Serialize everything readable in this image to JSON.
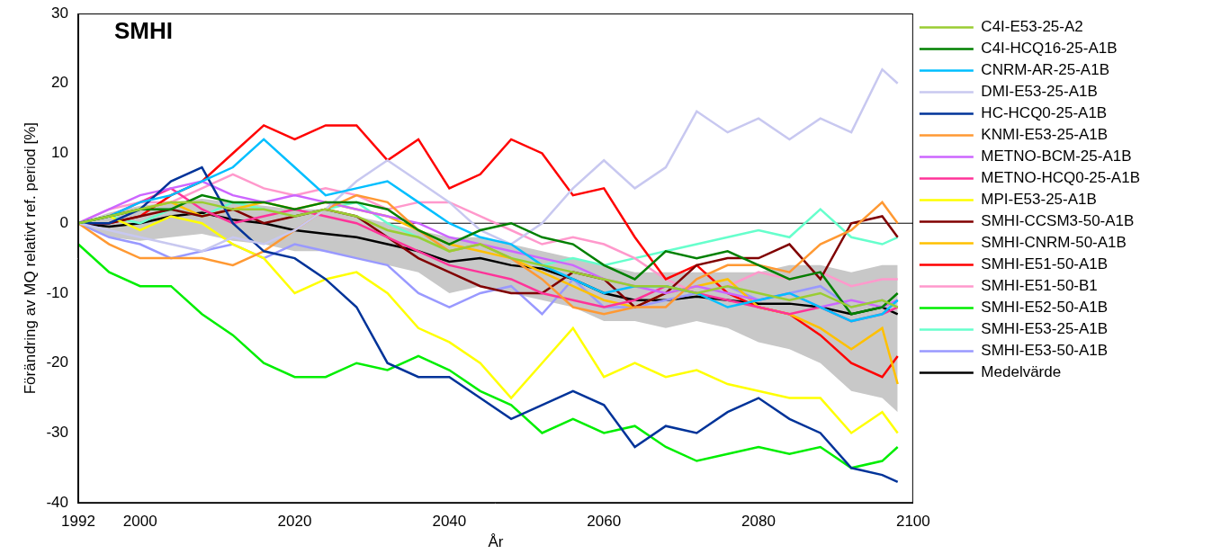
{
  "chart_data": {
    "type": "line",
    "annotation": "SMHI",
    "x_label": "År",
    "y_label": "Förändring av MQ relativt ref. period [%]",
    "x": [
      1992,
      1996,
      2000,
      2004,
      2008,
      2012,
      2016,
      2020,
      2024,
      2028,
      2032,
      2036,
      2040,
      2044,
      2048,
      2052,
      2056,
      2060,
      2064,
      2068,
      2072,
      2076,
      2080,
      2084,
      2088,
      2092,
      2096,
      2098
    ],
    "series": [
      {
        "name": "C4I-E53-25-A2",
        "color": "#9acd32",
        "values": [
          0,
          1,
          2,
          3,
          3,
          2,
          2,
          1,
          2,
          1,
          -1,
          -2,
          -4,
          -3,
          -5,
          -6,
          -7,
          -8,
          -9,
          -9,
          -10,
          -9,
          -10,
          -11,
          -10,
          -12,
          -11,
          -12
        ]
      },
      {
        "name": "C4I-HCQ16-25-A1B",
        "color": "#008000",
        "values": [
          0,
          1,
          2,
          2,
          4,
          3,
          3,
          2,
          3,
          3,
          2,
          -1,
          -3,
          -1,
          0,
          -2,
          -3,
          -6,
          -8,
          -4,
          -5,
          -4,
          -6,
          -8,
          -7,
          -13,
          -12,
          -10
        ]
      },
      {
        "name": "CNRM-AR-25-A1B",
        "color": "#00bfff",
        "values": [
          0,
          1,
          3,
          4,
          6,
          8,
          12,
          8,
          4,
          5,
          6,
          3,
          0,
          -2,
          -3,
          -6,
          -8,
          -10,
          -9,
          -9,
          -10,
          -12,
          -11,
          -10,
          -12,
          -14,
          -13,
          -11
        ]
      },
      {
        "name": "DMI-E53-25-A1B",
        "color": "#c8c8f0",
        "values": [
          0,
          -1,
          -2,
          -3,
          -4,
          -2,
          -3,
          -1,
          2,
          6,
          9,
          6,
          3,
          -1,
          -3,
          0,
          5,
          9,
          5,
          8,
          16,
          13,
          15,
          12,
          15,
          13,
          22,
          20
        ]
      },
      {
        "name": "HC-HCQ0-25-A1B",
        "color": "#003399",
        "values": [
          0,
          0,
          2,
          6,
          8,
          0,
          -4,
          -5,
          -8,
          -12,
          -20,
          -22,
          -22,
          -25,
          -28,
          -26,
          -24,
          -26,
          -32,
          -29,
          -30,
          -27,
          -25,
          -28,
          -30,
          -35,
          -36,
          -37
        ]
      },
      {
        "name": "KNMI-E53-25-A1B",
        "color": "#ff9933",
        "values": [
          0,
          -3,
          -5,
          -5,
          -5,
          -6,
          -4,
          -1,
          2,
          4,
          3,
          -1,
          -4,
          -3,
          -5,
          -8,
          -12,
          -13,
          -12,
          -12,
          -8,
          -6,
          -6,
          -7,
          -3,
          -1,
          3,
          0
        ]
      },
      {
        "name": "METNO-BCM-25-A1B",
        "color": "#cc66ff",
        "values": [
          0,
          2,
          4,
          5,
          6,
          4,
          3,
          4,
          3,
          2,
          1,
          0,
          -2,
          -3,
          -4,
          -5,
          -6,
          -8,
          -9,
          -10,
          -9,
          -10,
          -11,
          -10,
          -12,
          -11,
          -12,
          -11
        ]
      },
      {
        "name": "METNO-HCQ0-25-A1B",
        "color": "#ff3399",
        "values": [
          0,
          1,
          3,
          5,
          2,
          0,
          1,
          2,
          1,
          0,
          -2,
          -4,
          -6,
          -7,
          -8,
          -10,
          -11,
          -12,
          -11,
          -9,
          -10,
          -11,
          -12,
          -13,
          -12,
          -14,
          -13,
          -12
        ]
      },
      {
        "name": "MPI-E53-25-A1B",
        "color": "#ffff00",
        "values": [
          0,
          1,
          -1,
          1,
          0,
          -3,
          -5,
          -10,
          -8,
          -7,
          -10,
          -15,
          -17,
          -20,
          -25,
          -20,
          -15,
          -22,
          -20,
          -22,
          -21,
          -23,
          -24,
          -25,
          -25,
          -30,
          -27,
          -30
        ]
      },
      {
        "name": "SMHI-CCSM3-50-A1B",
        "color": "#800000",
        "values": [
          0,
          0,
          1,
          2,
          1,
          2,
          0,
          1,
          2,
          1,
          -2,
          -5,
          -7,
          -9,
          -10,
          -10,
          -7,
          -8,
          -12,
          -10,
          -6,
          -5,
          -5,
          -3,
          -8,
          0,
          1,
          -2
        ]
      },
      {
        "name": "SMHI-CNRM-50-A1B",
        "color": "#ffc000",
        "values": [
          0,
          1,
          2,
          3,
          1,
          2,
          3,
          2,
          3,
          2,
          1,
          -1,
          -3,
          -4,
          -5,
          -7,
          -9,
          -11,
          -12,
          -10,
          -9,
          -8,
          -12,
          -13,
          -15,
          -18,
          -15,
          -23
        ]
      },
      {
        "name": "SMHI-E51-50-A1B",
        "color": "#ff0000",
        "values": [
          0,
          0,
          1,
          4,
          6,
          10,
          14,
          12,
          14,
          14,
          9,
          12,
          5,
          7,
          12,
          10,
          4,
          5,
          -2,
          -8,
          -6,
          -10,
          -12,
          -13,
          -16,
          -20,
          -22,
          -19
        ]
      },
      {
        "name": "SMHI-E51-50-B1",
        "color": "#ff99cc",
        "values": [
          0,
          2,
          3,
          3,
          5,
          7,
          5,
          4,
          5,
          4,
          2,
          3,
          3,
          1,
          -1,
          -3,
          -2,
          -3,
          -5,
          -8,
          -10,
          -9,
          -7,
          -8,
          -7,
          -9,
          -8,
          -8
        ]
      },
      {
        "name": "SMHI-E52-50-A1B",
        "color": "#00ee00",
        "values": [
          -3,
          -7,
          -9,
          -9,
          -13,
          -16,
          -20,
          -22,
          -22,
          -20,
          -21,
          -19,
          -21,
          -24,
          -26,
          -30,
          -28,
          -30,
          -29,
          -32,
          -34,
          -33,
          -32,
          -33,
          -32,
          -35,
          -34,
          -32
        ]
      },
      {
        "name": "SMHI-E53-25-A1B",
        "color": "#66ffcc",
        "values": [
          0,
          1,
          0,
          2,
          1,
          3,
          2,
          1,
          2,
          3,
          0,
          -2,
          -4,
          -3,
          -5,
          -6,
          -5,
          -6,
          -5,
          -4,
          -3,
          -2,
          -1,
          -2,
          2,
          -2,
          -3,
          -2
        ]
      },
      {
        "name": "SMHI-E53-50-A1B",
        "color": "#9999ff",
        "values": [
          0,
          -2,
          -3,
          -5,
          -4,
          -3,
          -5,
          -3,
          -4,
          -5,
          -6,
          -10,
          -12,
          -10,
          -9,
          -13,
          -8,
          -12,
          -12,
          -11,
          -10,
          -9,
          -11,
          -10,
          -9,
          -12,
          -11,
          -12
        ]
      },
      {
        "name": "Medelvärde",
        "color": "#000000",
        "values": [
          0,
          -0.5,
          0,
          1,
          1.5,
          0.5,
          0,
          -1,
          -1.5,
          -2,
          -3,
          -4,
          -5.5,
          -5,
          -6,
          -6.5,
          -8,
          -10,
          -11,
          -11,
          -10.5,
          -11,
          -11.5,
          -11.5,
          -12,
          -13,
          -12,
          -13
        ]
      }
    ],
    "band": {
      "color": "#c8c8c8",
      "lower": [
        0,
        -2,
        -2.5,
        -2,
        -1.5,
        -2.5,
        -3,
        -4,
        -4,
        -5,
        -6,
        -7,
        -10,
        -9,
        -10,
        -11,
        -12,
        -14,
        -14,
        -15,
        -14,
        -15,
        -17,
        -18,
        -20,
        -24,
        -25,
        -27
      ],
      "upper": [
        0,
        1.5,
        2.5,
        3,
        3.5,
        3,
        2.5,
        2,
        2,
        1,
        0,
        -1,
        -2,
        -2,
        -3,
        -4,
        -5,
        -6,
        -7,
        -7,
        -7,
        -7,
        -7,
        -6,
        -6,
        -7,
        -6,
        -6
      ]
    },
    "reference_line": 0,
    "xlim": [
      1992,
      2100
    ],
    "xticks": [
      1992,
      2000,
      2020,
      2040,
      2060,
      2080,
      2100
    ],
    "ylim": [
      -40,
      30
    ],
    "yticks": [
      -40,
      -30,
      -20,
      -10,
      0,
      10,
      20,
      30
    ],
    "grid": false,
    "legend": "right"
  }
}
